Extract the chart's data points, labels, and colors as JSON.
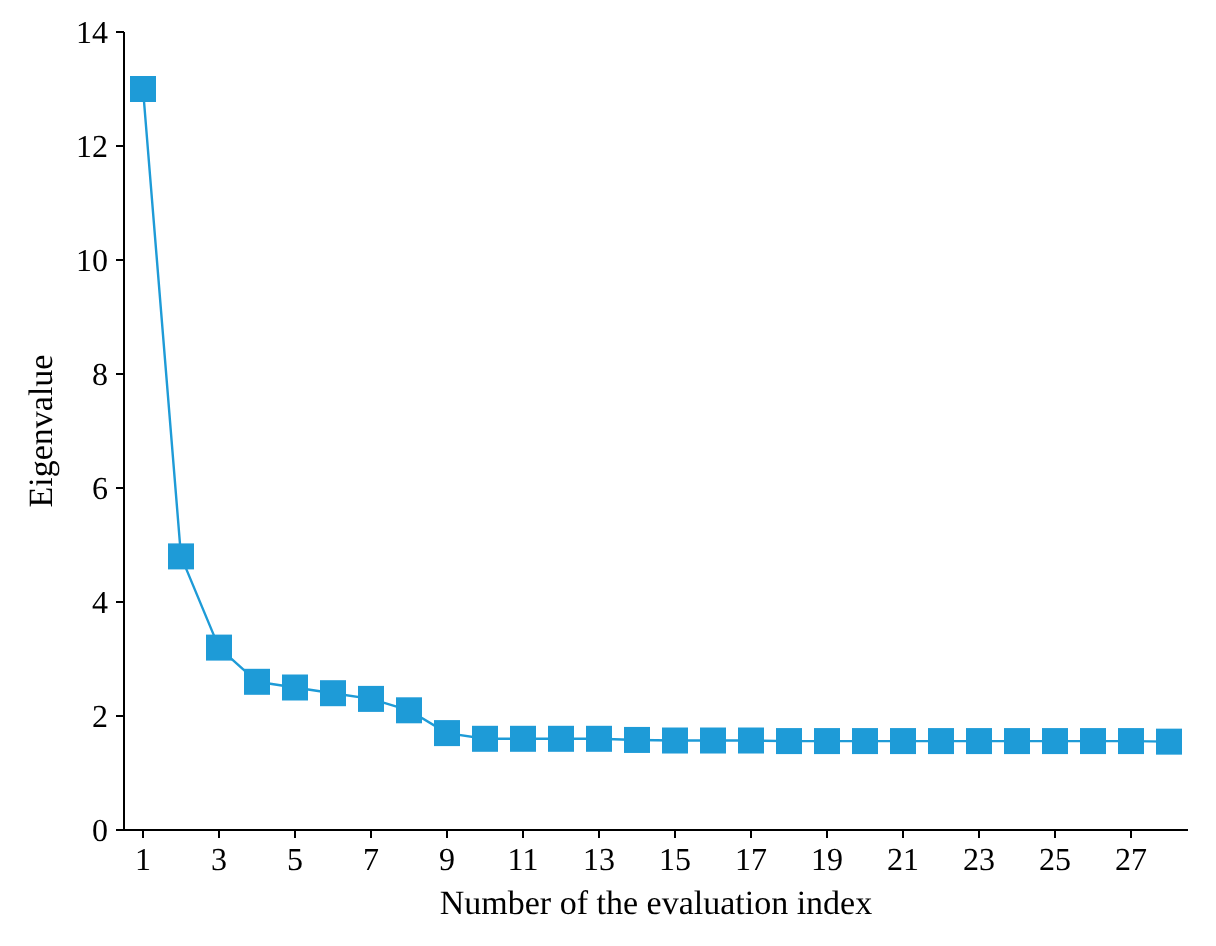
{
  "chart_data": {
    "type": "line",
    "xlabel": "Number of the evaluation index",
    "ylabel": "Eigenvalue",
    "x": [
      1,
      2,
      3,
      4,
      5,
      6,
      7,
      8,
      9,
      10,
      11,
      12,
      13,
      14,
      15,
      16,
      17,
      18,
      19,
      20,
      21,
      22,
      23,
      24,
      25,
      26,
      27,
      28
    ],
    "series": [
      {
        "color": "#1e9bd7",
        "values": [
          13,
          4.8,
          3.2,
          2.6,
          2.5,
          2.4,
          2.3,
          2.1,
          1.7,
          1.6,
          1.6,
          1.6,
          1.6,
          1.58,
          1.57,
          1.57,
          1.57,
          1.56,
          1.56,
          1.56,
          1.56,
          1.56,
          1.56,
          1.56,
          1.56,
          1.56,
          1.56,
          1.55
        ]
      }
    ],
    "xlim": [
      0.5,
      28.5
    ],
    "xticks": [
      1,
      3,
      5,
      7,
      9,
      11,
      13,
      15,
      17,
      19,
      21,
      23,
      25,
      27
    ],
    "ylim": [
      0,
      14
    ],
    "yticks": [
      0,
      2,
      4,
      6,
      8,
      10,
      12,
      14
    ],
    "marker": "square",
    "line_style": "solid",
    "grid": false
  }
}
